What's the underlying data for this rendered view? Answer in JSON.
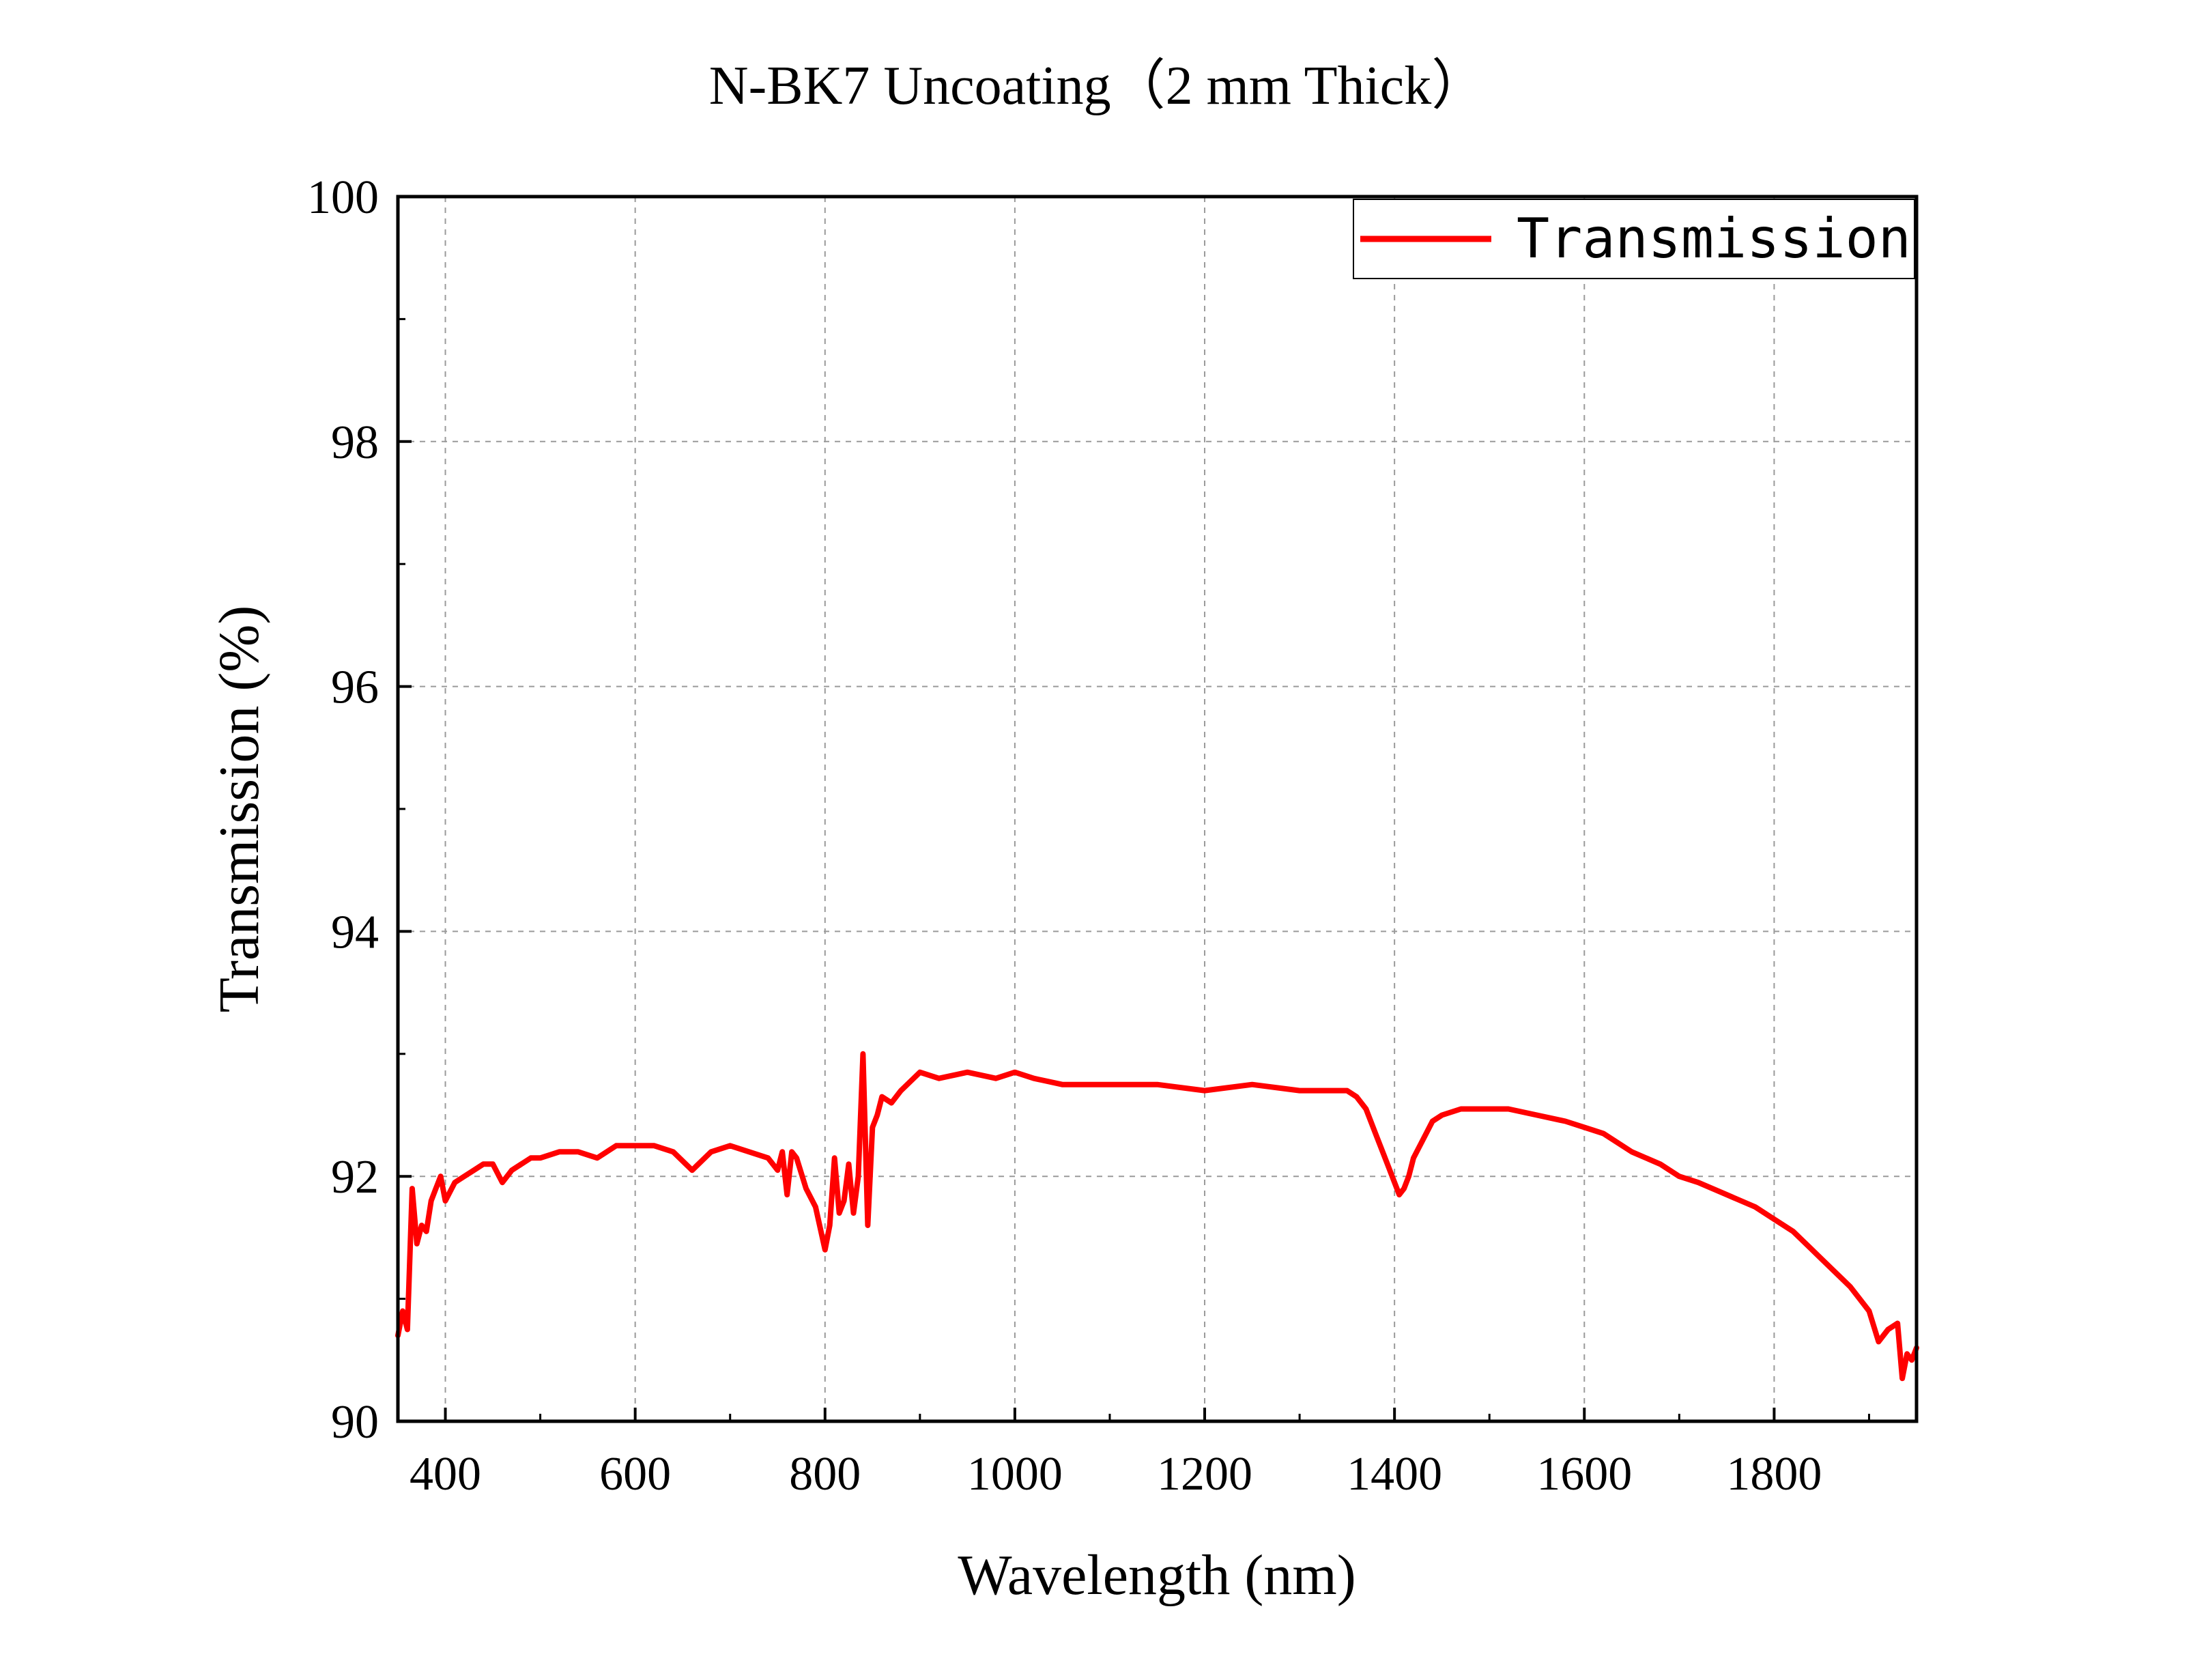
{
  "chart_data": {
    "type": "line",
    "title": "N-BK7 Uncoating（2 mm Thick）",
    "xlabel": "Wavelength (nm)",
    "ylabel": "Transmission (%)",
    "xlim": [
      350,
      1950
    ],
    "ylim": [
      90,
      100
    ],
    "xticks": [
      "400",
      "600",
      "800",
      "1000",
      "1200",
      "1400",
      "1600",
      "1800"
    ],
    "yticks": [
      "90",
      "92",
      "94",
      "96",
      "98",
      "100"
    ],
    "grid": true,
    "legend_position": "top-right",
    "series": [
      {
        "name": "Transmission",
        "color": "#ff0000",
        "x": [
          350,
          355,
          360,
          365,
          370,
          375,
          380,
          385,
          390,
          395,
          400,
          410,
          420,
          430,
          440,
          450,
          460,
          470,
          480,
          490,
          500,
          520,
          540,
          560,
          580,
          600,
          620,
          640,
          660,
          680,
          700,
          720,
          740,
          750,
          755,
          760,
          765,
          770,
          780,
          790,
          800,
          805,
          810,
          815,
          820,
          825,
          830,
          835,
          840,
          845,
          850,
          855,
          860,
          870,
          880,
          900,
          920,
          950,
          980,
          1000,
          1020,
          1050,
          1100,
          1150,
          1200,
          1250,
          1300,
          1330,
          1350,
          1360,
          1370,
          1380,
          1390,
          1400,
          1405,
          1410,
          1415,
          1420,
          1430,
          1440,
          1450,
          1470,
          1500,
          1520,
          1550,
          1580,
          1600,
          1620,
          1650,
          1680,
          1700,
          1720,
          1750,
          1780,
          1800,
          1820,
          1840,
          1860,
          1880,
          1890,
          1900,
          1910,
          1920,
          1930,
          1935,
          1940,
          1945,
          1950
        ],
        "y": [
          90.7,
          90.9,
          90.75,
          91.9,
          91.45,
          91.6,
          91.55,
          91.8,
          91.9,
          92.0,
          91.8,
          91.95,
          92.0,
          92.05,
          92.1,
          92.1,
          91.95,
          92.05,
          92.1,
          92.15,
          92.15,
          92.2,
          92.2,
          92.15,
          92.25,
          92.25,
          92.25,
          92.2,
          92.05,
          92.2,
          92.25,
          92.2,
          92.15,
          92.05,
          92.2,
          91.85,
          92.2,
          92.15,
          91.9,
          91.75,
          91.4,
          91.6,
          92.15,
          91.7,
          91.8,
          92.1,
          91.7,
          92.0,
          93.0,
          91.6,
          92.4,
          92.5,
          92.65,
          92.6,
          92.7,
          92.85,
          92.8,
          92.85,
          92.8,
          92.85,
          92.8,
          92.75,
          92.75,
          92.75,
          92.7,
          92.75,
          92.7,
          92.7,
          92.7,
          92.65,
          92.55,
          92.35,
          92.15,
          91.95,
          91.85,
          91.9,
          92.0,
          92.15,
          92.3,
          92.45,
          92.5,
          92.55,
          92.55,
          92.55,
          92.5,
          92.45,
          92.4,
          92.35,
          92.2,
          92.1,
          92.0,
          91.95,
          91.85,
          91.75,
          91.65,
          91.55,
          91.4,
          91.25,
          91.1,
          91.0,
          90.9,
          90.65,
          90.75,
          90.8,
          90.35,
          90.55,
          90.5,
          90.6
        ]
      }
    ]
  }
}
